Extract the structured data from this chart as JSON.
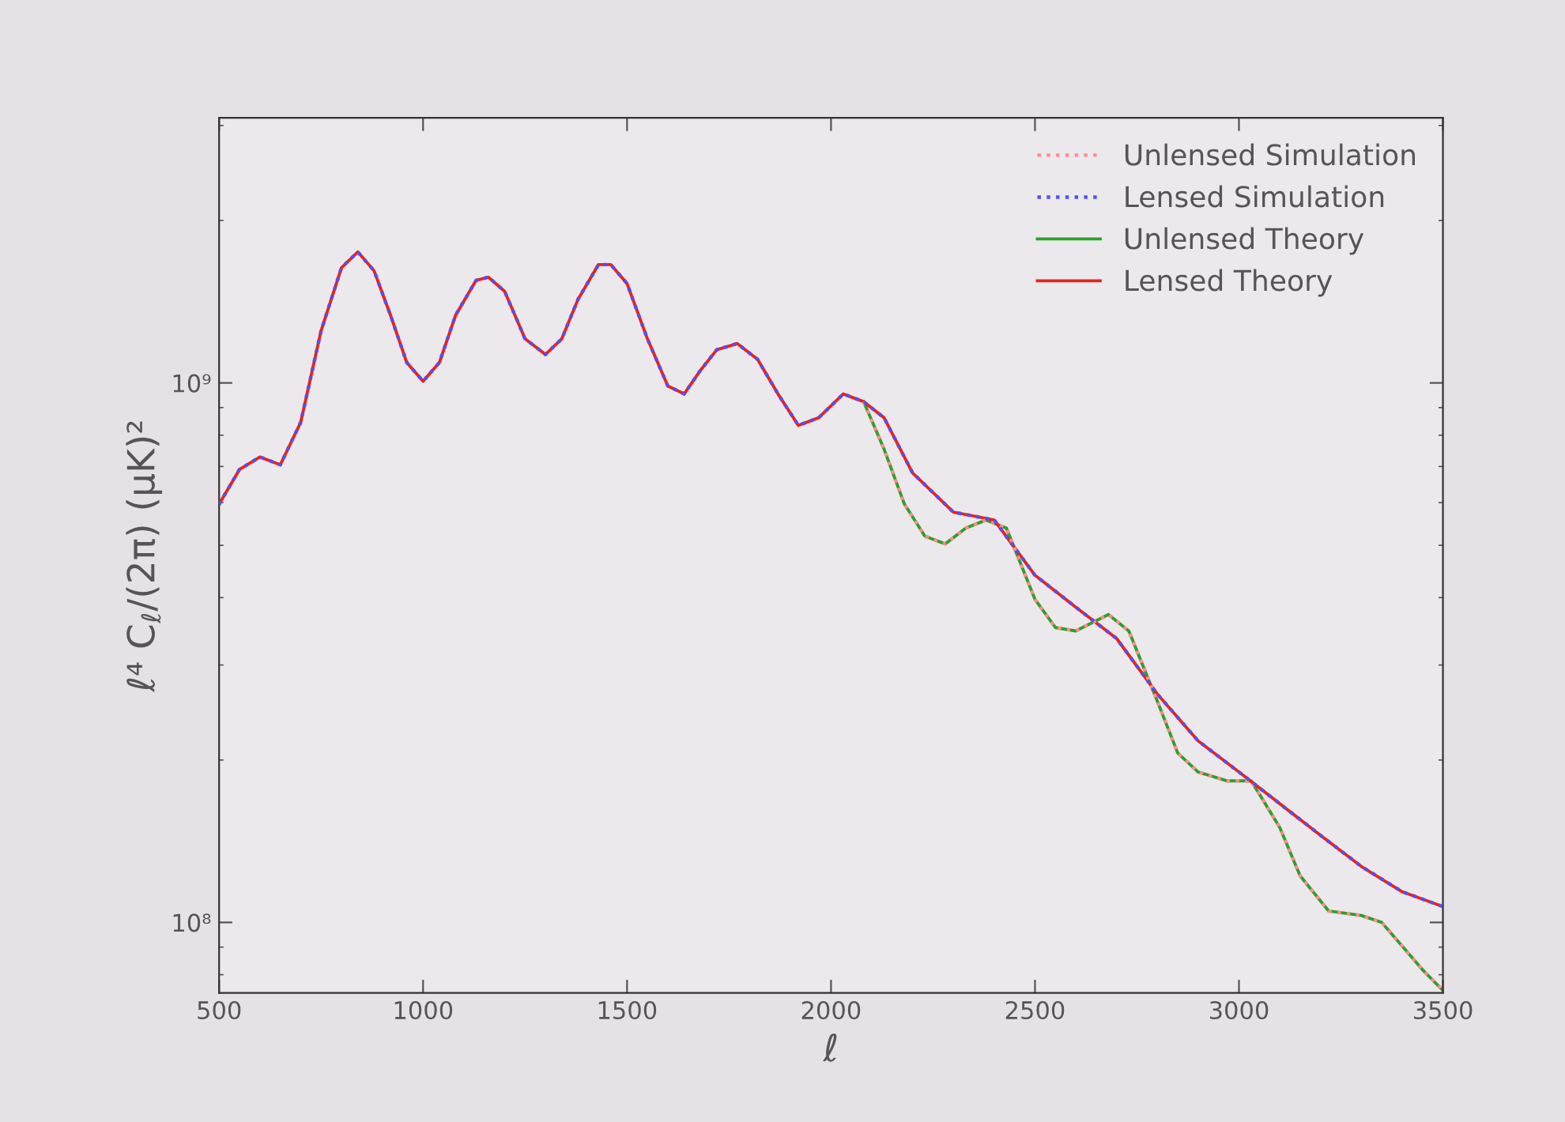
{
  "chart_data": {
    "type": "line",
    "xlabel": "ℓ",
    "ylabel": "ℓ⁴ C$_{ℓ}$/(2π) (μK)²",
    "log": "y",
    "xlim": [
      500,
      3500
    ],
    "xticks": [
      500,
      1000,
      1500,
      2000,
      2500,
      3000,
      3500
    ],
    "ylim": [
      74000000,
      3100000000
    ],
    "yticks": [
      {
        "value": 100000000,
        "label": "10⁸"
      },
      {
        "value": 1000000000,
        "label": "10⁹"
      }
    ],
    "legend": "top right",
    "grid": false,
    "series": [
      {
        "name": "Unlensed Simulation",
        "color": "#ff8c8c",
        "line_style": "dotted",
        "x": [
          2080,
          2130,
          2180,
          2230,
          2280,
          2330,
          2380,
          2430,
          2500,
          2550,
          2600,
          2680,
          2730,
          2800,
          2850,
          2900,
          2970,
          3030,
          3100,
          3150,
          3220,
          3300,
          3350,
          3400,
          3450,
          3500
        ],
        "values": [
          923000000,
          754000000,
          596000000,
          520000000,
          503000000,
          538000000,
          557000000,
          538000000,
          397000000,
          352000000,
          347000000,
          372000000,
          347000000,
          257000000,
          206000000,
          190000000,
          183000000,
          183000000,
          150000000,
          122000000,
          105000000,
          103000000,
          100000000,
          90400000,
          81700000,
          74800000
        ]
      },
      {
        "name": "Lensed Simulation",
        "color": "#5050ff",
        "line_style": "dotted",
        "x": [
          500,
          550,
          600,
          650,
          700,
          750,
          800,
          840,
          880,
          920,
          960,
          1000,
          1040,
          1080,
          1130,
          1160,
          1200,
          1250,
          1300,
          1340,
          1380,
          1430,
          1460,
          1500,
          1550,
          1600,
          1640,
          1680,
          1720,
          1770,
          1820,
          1870,
          1920,
          1970,
          2030,
          2080,
          2130,
          2200,
          2300,
          2400,
          2500,
          2600,
          2700,
          2800,
          2900,
          3000,
          3100,
          3200,
          3300,
          3400,
          3500
        ],
        "values": [
          596000000,
          691000000,
          729000000,
          705000000,
          845000000,
          1249000000,
          1635000000,
          1749000000,
          1613000000,
          1336000000,
          1091000000,
          1007000000,
          1091000000,
          1336000000,
          1549000000,
          1570000000,
          1478000000,
          1207000000,
          1129000000,
          1207000000,
          1429000000,
          1657000000,
          1657000000,
          1528000000,
          1207000000,
          987000000,
          954000000,
          1055000000,
          1152000000,
          1183000000,
          1106000000,
          954000000,
          834000000,
          862000000,
          954000000,
          923000000,
          862000000,
          681000000,
          576000000,
          557000000,
          440000000,
          384000000,
          336000000,
          265000000,
          217000000,
          190000000,
          166000000,
          145000000,
          127000000,
          114000000,
          107000000
        ]
      },
      {
        "name": "Unlensed Theory",
        "color": "#2ca02c",
        "line_style": "solid",
        "x": [
          2080,
          2130,
          2180,
          2230,
          2280,
          2330,
          2380,
          2430,
          2500,
          2550,
          2600,
          2680,
          2730,
          2800,
          2850,
          2900,
          2970,
          3030,
          3100,
          3150,
          3220,
          3300,
          3350,
          3400,
          3450,
          3500
        ],
        "values": [
          923000000,
          754000000,
          596000000,
          520000000,
          503000000,
          538000000,
          557000000,
          538000000,
          397000000,
          352000000,
          347000000,
          372000000,
          347000000,
          257000000,
          206000000,
          190000000,
          183000000,
          183000000,
          150000000,
          122000000,
          105000000,
          103000000,
          100000000,
          90400000,
          81700000,
          74800000
        ]
      },
      {
        "name": "Lensed Theory",
        "color": "#e8231e",
        "line_style": "solid",
        "x": [
          500,
          550,
          600,
          650,
          700,
          750,
          800,
          840,
          880,
          920,
          960,
          1000,
          1040,
          1080,
          1130,
          1160,
          1200,
          1250,
          1300,
          1340,
          1380,
          1430,
          1460,
          1500,
          1550,
          1600,
          1640,
          1680,
          1720,
          1770,
          1820,
          1870,
          1920,
          1970,
          2030,
          2080,
          2130,
          2200,
          2300,
          2400,
          2500,
          2600,
          2700,
          2800,
          2900,
          3000,
          3100,
          3200,
          3300,
          3400,
          3500
        ],
        "values": [
          596000000,
          691000000,
          729000000,
          705000000,
          845000000,
          1249000000,
          1635000000,
          1749000000,
          1613000000,
          1336000000,
          1091000000,
          1007000000,
          1091000000,
          1336000000,
          1549000000,
          1570000000,
          1478000000,
          1207000000,
          1129000000,
          1207000000,
          1429000000,
          1657000000,
          1657000000,
          1528000000,
          1207000000,
          987000000,
          954000000,
          1055000000,
          1152000000,
          1183000000,
          1106000000,
          954000000,
          834000000,
          862000000,
          954000000,
          923000000,
          862000000,
          681000000,
          576000000,
          557000000,
          440000000,
          384000000,
          336000000,
          265000000,
          217000000,
          190000000,
          166000000,
          145000000,
          127000000,
          114000000,
          107000000
        ]
      }
    ]
  }
}
